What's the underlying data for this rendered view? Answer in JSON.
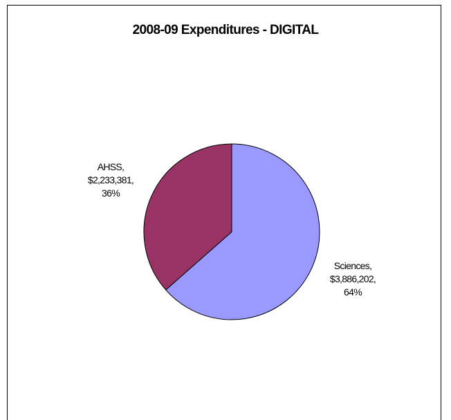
{
  "chart_data": {
    "type": "pie",
    "title": "2008-09 Expenditures - DIGITAL",
    "slices": [
      {
        "name": "Sciences",
        "value": 3886202,
        "value_label": "$3,886,202",
        "percent_label": "64%",
        "color": "#9999FF"
      },
      {
        "name": "AHSS",
        "value": 2233381,
        "value_label": "$2,233,381",
        "percent_label": "36%",
        "color": "#993366"
      }
    ],
    "legend": "none",
    "start_angle_deg": 0,
    "direction": "clockwise",
    "slice_border_color": "#000000"
  }
}
